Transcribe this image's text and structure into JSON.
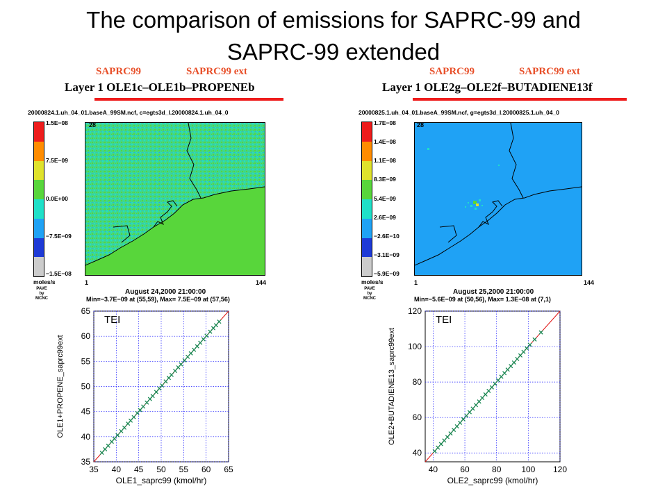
{
  "slide": {
    "title_line1": "The comparison of emissions for SAPRC-99 and",
    "title_line2": "SAPRC-99 extended"
  },
  "left_panel": {
    "sap_a": "SAPRC99",
    "sap_b": "SAPRC99 ext",
    "layer_title": "Layer 1  OLE1c–OLE1b–PROPENEb",
    "file_line": "20000824.1.uh_04_01.baseA_99SM.ncf, c=egts3d_l.20000824.1.uh_04_0",
    "grid_top": "28",
    "grid_x_min": "1",
    "grid_x_max": "144",
    "grid_y_min": "1",
    "legend_labels": [
      "1.5E−08",
      "7.5E−09",
      "0.0E+00",
      "−7.5E−09",
      "−1.5E−08"
    ],
    "legend_colors": [
      "#ee1c1c",
      "#ff8c00",
      "#dfe22c",
      "#58d63b",
      "#1fe0c8",
      "#1fa2f5",
      "#1e3ad6",
      "#cccccc"
    ],
    "units": "moles/s",
    "credit_1": "PAVE",
    "credit_2": "by",
    "credit_3": "MCNC",
    "date": "August 24,2000 21:00:00",
    "minmax": "Min=−3.7E−09 at (55,59), Max= 7.5E−09 at (57,56)"
  },
  "right_panel": {
    "sap_a": "SAPRC99",
    "sap_b": "SAPRC99 ext",
    "layer_title": "Layer 1  OLE2g–OLE2f–BUTADIENE13f",
    "file_line": "20000825.1.uh_04_01.baseA_99SM.ncf, g=egts3d_l.20000825.1.uh_04_0",
    "grid_top": "28",
    "grid_x_min": "1",
    "grid_x_max": "144",
    "grid_y_min": "1",
    "legend_labels": [
      "1.7E−08",
      "1.4E−08",
      "1.1E−08",
      "8.3E−09",
      "5.4E−09",
      "2.6E−09",
      "−2.6E−10",
      "−3.1E−09",
      "−5.9E−09"
    ],
    "legend_colors": [
      "#ee1c1c",
      "#ff8c00",
      "#dfe22c",
      "#58d63b",
      "#1fe0c8",
      "#1fa2f5",
      "#1e3ad6",
      "#cccccc"
    ],
    "units": "moles/s",
    "credit_1": "PAVE",
    "credit_2": "by",
    "credit_3": "MCNC",
    "date": "August 25,2000 21:00:00",
    "minmax": "Min=−5.6E−09 at (50,56), Max= 1.3E−08 at (7,1)"
  },
  "colors": {
    "map_left_bg": "#58d63b",
    "map_right_bg": "#1fa2f5",
    "scatter_marker": "#1a8a55",
    "one_to_one_line": "#e01010",
    "grid": "#1a1aff",
    "title_accent": "#e8502a"
  },
  "chart_data": [
    {
      "type": "scatter",
      "annotation": "TEI",
      "xlabel": "OLE1_saprc99    (kmol/hr)",
      "ylabel": "OLE1+PROPENE_saprc99ext",
      "xlim": [
        35,
        65
      ],
      "ylim": [
        35,
        65
      ],
      "xticks": [
        35,
        40,
        45,
        50,
        55,
        60,
        65
      ],
      "yticks": [
        35,
        40,
        45,
        50,
        55,
        60,
        65
      ],
      "grid": true,
      "reference_line": "1:1",
      "x": [
        36.8,
        37.5,
        38.2,
        39.0,
        39.6,
        40.3,
        41.1,
        41.8,
        42.6,
        43.2,
        43.9,
        44.7,
        45.3,
        46.0,
        46.8,
        47.5,
        48.1,
        48.9,
        49.6,
        50.2,
        51.0,
        51.7,
        52.3,
        53.1,
        53.8,
        54.4,
        55.2,
        55.9,
        56.6,
        57.3,
        58.0,
        58.7,
        59.4,
        60.1,
        60.9,
        61.6,
        62.2,
        62.9
      ],
      "y": [
        36.8,
        37.5,
        38.2,
        39.0,
        39.6,
        40.3,
        41.1,
        41.8,
        42.6,
        43.2,
        43.9,
        44.7,
        45.3,
        46.0,
        46.8,
        47.5,
        48.1,
        48.9,
        49.6,
        50.2,
        51.0,
        51.7,
        52.3,
        53.1,
        53.8,
        54.4,
        55.2,
        55.9,
        56.6,
        57.3,
        58.0,
        58.7,
        59.4,
        60.1,
        60.9,
        61.6,
        62.2,
        62.9
      ]
    },
    {
      "type": "scatter",
      "annotation": "TEI",
      "xlabel": "OLE2_saprc99   (kmol/hr)",
      "ylabel": "OLE2+BUTADIENE13_saprc99ext",
      "xlim": [
        35,
        120
      ],
      "ylim": [
        35,
        120
      ],
      "xticks": [
        40,
        60,
        80,
        100,
        120
      ],
      "yticks": [
        40,
        60,
        80,
        100,
        120
      ],
      "grid": true,
      "reference_line": "1:1",
      "x": [
        41,
        43,
        45,
        47,
        49,
        51,
        53,
        55,
        57,
        59,
        61,
        63,
        65,
        67,
        69,
        71,
        73,
        75,
        77,
        79,
        81,
        83,
        85,
        87,
        89,
        91,
        93,
        95,
        97,
        99,
        101,
        104,
        108
      ],
      "y": [
        41,
        43,
        45,
        47,
        49,
        51,
        53,
        55,
        57,
        59,
        61,
        63,
        65,
        67,
        69,
        71,
        73,
        75,
        77,
        79,
        81,
        83,
        85,
        87,
        89,
        91,
        93,
        95,
        97,
        99,
        101,
        104,
        108
      ]
    }
  ]
}
